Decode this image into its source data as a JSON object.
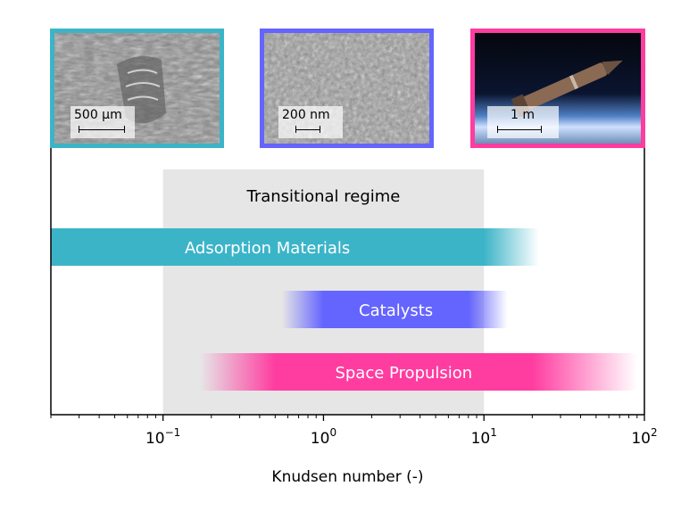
{
  "chart_data": {
    "type": "range-bar",
    "xlabel": "Knudsen number (-)",
    "xscale": "log",
    "xlim": [
      0.02,
      100
    ],
    "xticks": [
      {
        "value": 0.1,
        "label_base": "10",
        "label_exp": "−1"
      },
      {
        "value": 1,
        "label_base": "10",
        "label_exp": "0"
      },
      {
        "value": 10,
        "label_base": "10",
        "label_exp": "1"
      },
      {
        "value": 100,
        "label_base": "10",
        "label_exp": "2"
      }
    ],
    "region": {
      "label": "Transitional regime",
      "x_start": 0.1,
      "x_end": 10,
      "color": "#e6e6e6"
    },
    "series": [
      {
        "name": "Adsorption Materials",
        "x_start": 0.02,
        "x_end": 22,
        "solid_start": 0.02,
        "solid_end": 10,
        "color": "#3cb4c8"
      },
      {
        "name": "Catalysts",
        "x_start": 0.55,
        "x_end": 14,
        "solid_start": 1.0,
        "solid_end": 8,
        "color": "#6464ff"
      },
      {
        "name": "Space Propulsion",
        "x_start": 0.17,
        "x_end": 90,
        "solid_start": 0.5,
        "solid_end": 20,
        "color": "#ff3ca0"
      }
    ],
    "images": [
      {
        "name": "adsorption-material-micrograph",
        "scale_label": "500 µm",
        "border_color": "#3cb4c8"
      },
      {
        "name": "catalyst-micrograph",
        "scale_label": "200 nm",
        "border_color": "#6464ff"
      },
      {
        "name": "space-propulsion-vehicle-photo",
        "scale_label": "1 m",
        "border_color": "#ff3ca0"
      }
    ]
  }
}
